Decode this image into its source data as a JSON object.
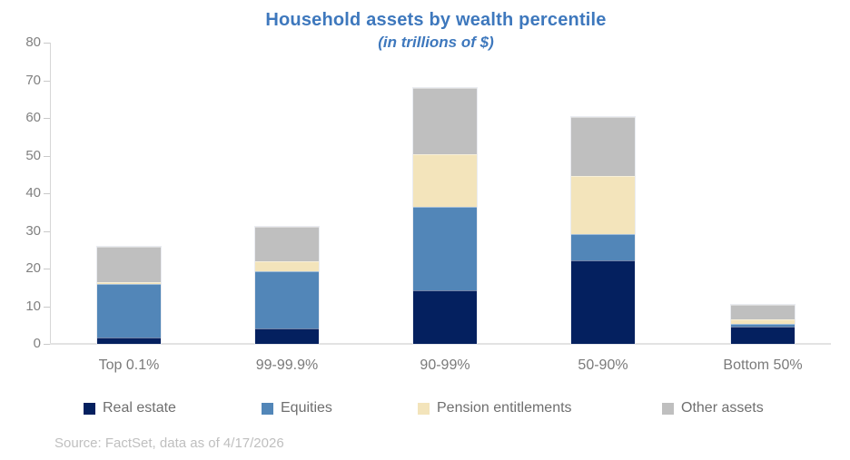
{
  "chart_data": {
    "type": "bar",
    "stacked": true,
    "title": "Household assets by wealth percentile",
    "subtitle": "(in trillions of $)",
    "categories": [
      "Top 0.1%",
      "99-99.9%",
      "90-99%",
      "50-90%",
      "Bottom 50%"
    ],
    "series": [
      {
        "name": "Real estate",
        "color": "#04205f",
        "values": [
          1.8,
          4.2,
          14.3,
          22.2,
          4.5
        ]
      },
      {
        "name": "Equities",
        "color": "#5286b8",
        "values": [
          14.0,
          15.2,
          22.0,
          7.0,
          0.7
        ]
      },
      {
        "name": "Pension entitlements",
        "color": "#f3e4bb",
        "values": [
          0.5,
          2.6,
          14.0,
          15.5,
          1.3
        ]
      },
      {
        "name": "Other assets",
        "color": "#bfbfbf",
        "values": [
          9.5,
          9.0,
          17.7,
          15.5,
          3.8
        ]
      }
    ],
    "ylim": [
      0,
      80
    ],
    "yticks": [
      0,
      10,
      20,
      30,
      40,
      50,
      60,
      70,
      80
    ],
    "grid": false,
    "legend_position": "bottom",
    "source": "Source: FactSet, data as of 4/17/2026"
  },
  "colors": {
    "title_text": "#3e78bd",
    "axis_text": "#7f7f7f",
    "x_label_text": "#7a7a7a",
    "legend_text": "#6f6f6f",
    "axis_line": "#d6d6d6",
    "source_text": "#bfbfbf"
  }
}
